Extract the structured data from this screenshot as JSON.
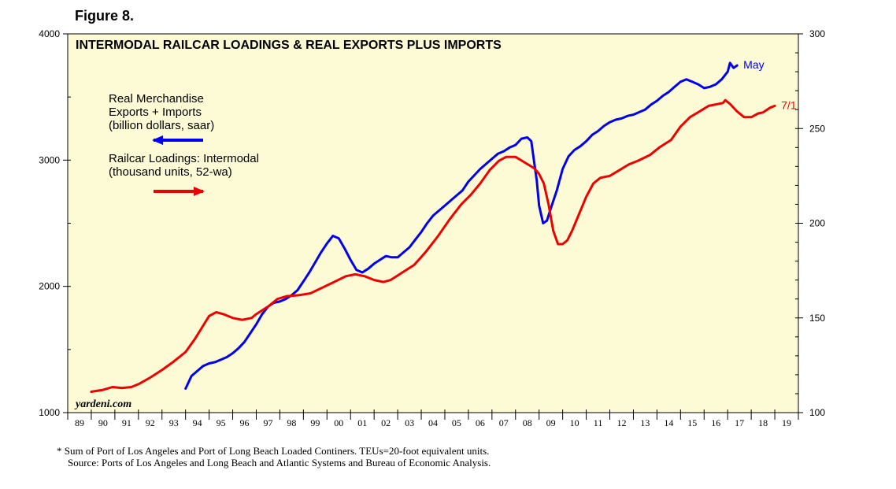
{
  "figure_label": "Figure 8.",
  "footnote": "*  Sum of Port of Los Angeles and Port of Long Beach Loaded Continers. TEUs=20-foot equivalent units.",
  "source": "Source: Ports of Los Angeles and Long Beach and Atlantic Systems and Bureau of Economic Analysis.",
  "colors": {
    "panel_bg": "#fdfbd6",
    "exports_line": "#0000ee",
    "railcar_line": "#ee0000"
  },
  "chart_data": {
    "type": "line",
    "title": "INTERMODAL RAILCAR LOADINGS & REAL EXPORTS PLUS IMPORTS",
    "watermark": "yardeni.com",
    "x_range": [
      1989,
      2020
    ],
    "x_tick_labels": [
      "89",
      "90",
      "91",
      "92",
      "93",
      "94",
      "95",
      "96",
      "97",
      "98",
      "99",
      "00",
      "01",
      "02",
      "03",
      "04",
      "05",
      "06",
      "07",
      "08",
      "09",
      "10",
      "11",
      "12",
      "13",
      "14",
      "15",
      "16",
      "17",
      "18",
      "19"
    ],
    "left_axis": {
      "range": [
        1000,
        4000
      ],
      "ticks": [
        1000,
        2000,
        3000,
        4000
      ],
      "tick_labels": [
        "1000",
        "2000",
        "3000",
        "4000"
      ]
    },
    "right_axis": {
      "range": [
        100,
        300
      ],
      "ticks": [
        100,
        150,
        200,
        250,
        300
      ],
      "tick_labels": [
        "100",
        "150",
        "200",
        "250",
        "300"
      ]
    },
    "legend": [
      {
        "label_lines": [
          "Real Merchandise",
          "Exports + Imports",
          "(billion dollars, saar)"
        ],
        "arrow": "left",
        "color": "#0000ee"
      },
      {
        "label_lines": [
          "Railcar Loadings: Intermodal",
          "(thousand units, 52-wa)"
        ],
        "arrow": "right",
        "color": "#ee0000"
      }
    ],
    "series": [
      {
        "name": "Real Merchandise Exports + Imports",
        "axis": "left",
        "color": "#0000ee",
        "end_label": "May",
        "points": [
          [
            1994.0,
            1190
          ],
          [
            1994.25,
            1290
          ],
          [
            1994.5,
            1330
          ],
          [
            1994.75,
            1370
          ],
          [
            1995.0,
            1390
          ],
          [
            1995.25,
            1400
          ],
          [
            1995.5,
            1420
          ],
          [
            1995.75,
            1440
          ],
          [
            1996.0,
            1470
          ],
          [
            1996.25,
            1510
          ],
          [
            1996.5,
            1560
          ],
          [
            1996.75,
            1630
          ],
          [
            1997.0,
            1700
          ],
          [
            1997.25,
            1780
          ],
          [
            1997.5,
            1840
          ],
          [
            1997.75,
            1870
          ],
          [
            1998.0,
            1880
          ],
          [
            1998.25,
            1900
          ],
          [
            1998.5,
            1930
          ],
          [
            1998.75,
            1970
          ],
          [
            1999.0,
            2040
          ],
          [
            1999.25,
            2110
          ],
          [
            1999.5,
            2190
          ],
          [
            1999.75,
            2270
          ],
          [
            2000.0,
            2340
          ],
          [
            2000.25,
            2400
          ],
          [
            2000.5,
            2380
          ],
          [
            2000.75,
            2300
          ],
          [
            2001.0,
            2210
          ],
          [
            2001.25,
            2130
          ],
          [
            2001.5,
            2110
          ],
          [
            2001.75,
            2140
          ],
          [
            2002.0,
            2180
          ],
          [
            2002.25,
            2210
          ],
          [
            2002.5,
            2240
          ],
          [
            2002.75,
            2230
          ],
          [
            2003.0,
            2230
          ],
          [
            2003.25,
            2270
          ],
          [
            2003.5,
            2310
          ],
          [
            2003.75,
            2370
          ],
          [
            2004.0,
            2430
          ],
          [
            2004.25,
            2500
          ],
          [
            2004.5,
            2560
          ],
          [
            2004.75,
            2600
          ],
          [
            2005.0,
            2640
          ],
          [
            2005.25,
            2680
          ],
          [
            2005.5,
            2720
          ],
          [
            2005.75,
            2760
          ],
          [
            2006.0,
            2830
          ],
          [
            2006.25,
            2880
          ],
          [
            2006.5,
            2930
          ],
          [
            2006.75,
            2970
          ],
          [
            2007.0,
            3010
          ],
          [
            2007.25,
            3050
          ],
          [
            2007.5,
            3070
          ],
          [
            2007.75,
            3100
          ],
          [
            2008.0,
            3120
          ],
          [
            2008.25,
            3170
          ],
          [
            2008.5,
            3180
          ],
          [
            2008.67,
            3150
          ],
          [
            2008.75,
            3040
          ],
          [
            2008.9,
            2840
          ],
          [
            2009.0,
            2640
          ],
          [
            2009.17,
            2500
          ],
          [
            2009.33,
            2520
          ],
          [
            2009.5,
            2620
          ],
          [
            2009.75,
            2760
          ],
          [
            2010.0,
            2930
          ],
          [
            2010.25,
            3030
          ],
          [
            2010.5,
            3080
          ],
          [
            2010.75,
            3110
          ],
          [
            2011.0,
            3150
          ],
          [
            2011.25,
            3200
          ],
          [
            2011.5,
            3230
          ],
          [
            2011.75,
            3270
          ],
          [
            2012.0,
            3300
          ],
          [
            2012.25,
            3320
          ],
          [
            2012.5,
            3330
          ],
          [
            2012.75,
            3350
          ],
          [
            2013.0,
            3360
          ],
          [
            2013.25,
            3380
          ],
          [
            2013.5,
            3400
          ],
          [
            2013.75,
            3440
          ],
          [
            2014.0,
            3470
          ],
          [
            2014.25,
            3510
          ],
          [
            2014.5,
            3540
          ],
          [
            2014.75,
            3580
          ],
          [
            2015.0,
            3620
          ],
          [
            2015.25,
            3640
          ],
          [
            2015.5,
            3620
          ],
          [
            2015.75,
            3600
          ],
          [
            2016.0,
            3570
          ],
          [
            2016.25,
            3580
          ],
          [
            2016.5,
            3600
          ],
          [
            2016.75,
            3640
          ],
          [
            2017.0,
            3700
          ],
          [
            2017.1,
            3770
          ],
          [
            2017.25,
            3730
          ],
          [
            2017.4,
            3750
          ]
        ]
      },
      {
        "name": "Railcar Loadings: Intermodal",
        "axis": "right",
        "color": "#ee0000",
        "end_label": "7/1",
        "points": [
          [
            1990.0,
            111
          ],
          [
            1990.5,
            112
          ],
          [
            1990.9,
            113.5
          ],
          [
            1991.3,
            113
          ],
          [
            1991.7,
            113.5
          ],
          [
            1992.0,
            115
          ],
          [
            1992.5,
            118.5
          ],
          [
            1993.0,
            122.5
          ],
          [
            1993.5,
            127
          ],
          [
            1994.0,
            132
          ],
          [
            1994.4,
            139
          ],
          [
            1994.8,
            147
          ],
          [
            1995.0,
            151
          ],
          [
            1995.3,
            153
          ],
          [
            1995.6,
            152
          ],
          [
            1996.0,
            150
          ],
          [
            1996.4,
            149
          ],
          [
            1996.8,
            150
          ],
          [
            1997.0,
            152
          ],
          [
            1997.5,
            156
          ],
          [
            1997.9,
            160
          ],
          [
            1998.3,
            161.5
          ],
          [
            1998.8,
            162
          ],
          [
            1999.3,
            163
          ],
          [
            1999.8,
            166
          ],
          [
            2000.3,
            169
          ],
          [
            2000.8,
            172
          ],
          [
            2001.2,
            173
          ],
          [
            2001.6,
            172
          ],
          [
            2002.0,
            170
          ],
          [
            2002.4,
            169
          ],
          [
            2002.7,
            170
          ],
          [
            2003.2,
            174
          ],
          [
            2003.7,
            178
          ],
          [
            2004.2,
            185
          ],
          [
            2004.7,
            193
          ],
          [
            2005.2,
            202
          ],
          [
            2005.7,
            210
          ],
          [
            2006.1,
            215
          ],
          [
            2006.5,
            221
          ],
          [
            2006.9,
            228
          ],
          [
            2007.3,
            233
          ],
          [
            2007.6,
            235
          ],
          [
            2008.0,
            235
          ],
          [
            2008.4,
            232
          ],
          [
            2008.8,
            229
          ],
          [
            2009.0,
            226
          ],
          [
            2009.2,
            221
          ],
          [
            2009.4,
            210
          ],
          [
            2009.6,
            196
          ],
          [
            2009.8,
            189
          ],
          [
            2010.0,
            189
          ],
          [
            2010.2,
            191
          ],
          [
            2010.4,
            196
          ],
          [
            2010.7,
            205
          ],
          [
            2011.0,
            214
          ],
          [
            2011.3,
            221
          ],
          [
            2011.6,
            224
          ],
          [
            2012.0,
            225
          ],
          [
            2012.4,
            228
          ],
          [
            2012.8,
            231
          ],
          [
            2013.2,
            233
          ],
          [
            2013.7,
            236
          ],
          [
            2014.1,
            240
          ],
          [
            2014.6,
            244
          ],
          [
            2015.0,
            251
          ],
          [
            2015.4,
            256
          ],
          [
            2015.8,
            259
          ],
          [
            2016.2,
            262
          ],
          [
            2016.6,
            263
          ],
          [
            2016.8,
            263.5
          ],
          [
            2016.9,
            265
          ],
          [
            2017.1,
            263
          ],
          [
            2017.4,
            259
          ],
          [
            2017.7,
            256
          ],
          [
            2018.0,
            256
          ],
          [
            2018.3,
            258
          ],
          [
            2018.5,
            258.5
          ],
          [
            2018.8,
            261
          ],
          [
            2019.0,
            262
          ]
        ]
      }
    ]
  }
}
